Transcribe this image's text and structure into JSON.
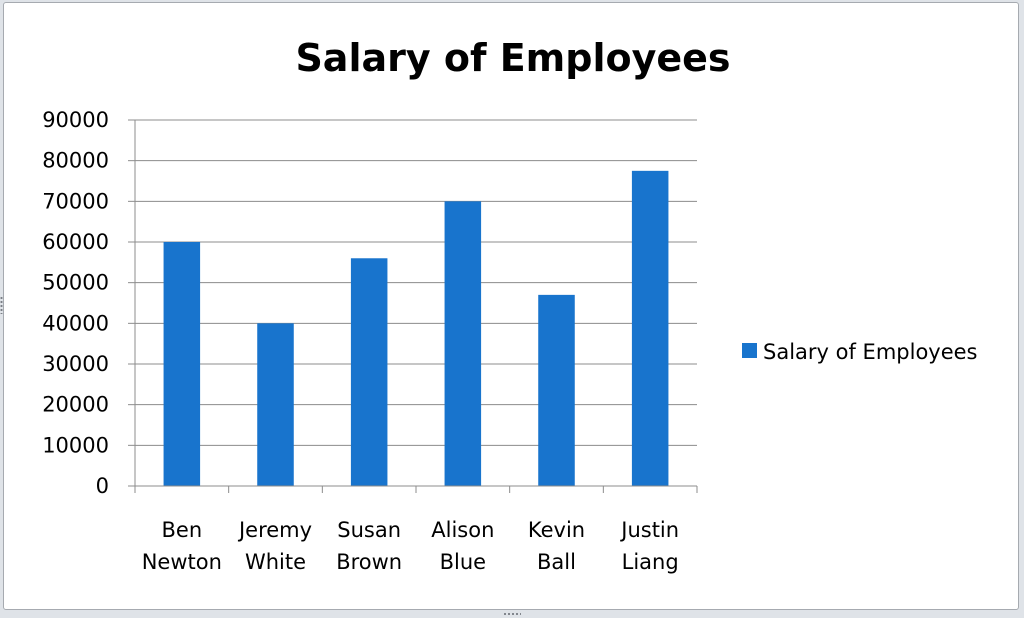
{
  "chart_data": {
    "type": "bar",
    "title": "Salary of Employees",
    "xlabel": "",
    "ylabel": "",
    "categories": [
      [
        "Ben",
        "Newton"
      ],
      [
        "Jeremy",
        "White"
      ],
      [
        "Susan",
        "Brown"
      ],
      [
        "Alison",
        "Blue"
      ],
      [
        "Kevin",
        "Ball"
      ],
      [
        "Justin",
        "Liang"
      ]
    ],
    "series": [
      {
        "name": "Salary of Employees",
        "values": [
          60000,
          40000,
          56000,
          70000,
          47000,
          77500
        ],
        "color": "#1874cd"
      }
    ],
    "ylim": [
      0,
      90000
    ],
    "yticks": [
      "0",
      "10000",
      "20000",
      "30000",
      "40000",
      "50000",
      "60000",
      "70000",
      "80000",
      "90000"
    ],
    "grid": true,
    "legend_position": "right"
  }
}
